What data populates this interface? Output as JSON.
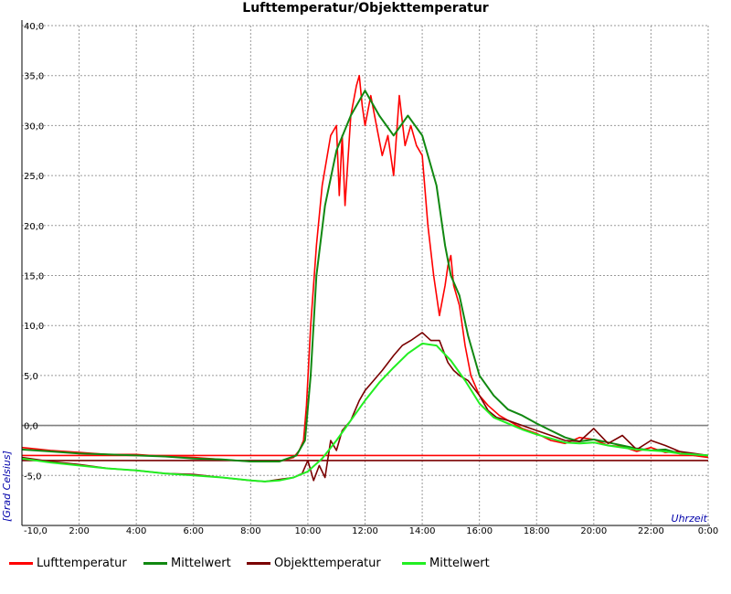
{
  "chart_data": {
    "type": "line",
    "title": "Lufttemperatur/Objekttemperatur",
    "xlabel": "Uhrzeit",
    "ylabel": "[Grad Celsius]",
    "xlim": [
      0,
      24
    ],
    "ylim": [
      -10,
      40
    ],
    "x_ticks": [
      {
        "x": 0,
        "label": "-10,0"
      },
      {
        "x": 2,
        "label": "2:00"
      },
      {
        "x": 4,
        "label": "4:00"
      },
      {
        "x": 6,
        "label": "6:00"
      },
      {
        "x": 8,
        "label": "8:00"
      },
      {
        "x": 10,
        "label": "10:00"
      },
      {
        "x": 12,
        "label": "12:00"
      },
      {
        "x": 14,
        "label": "14:00"
      },
      {
        "x": 16,
        "label": "16:00"
      },
      {
        "x": 18,
        "label": "18:00"
      },
      {
        "x": 20,
        "label": "20:00"
      },
      {
        "x": 22,
        "label": "22:00"
      },
      {
        "x": 24,
        "label": "0:00"
      }
    ],
    "y_ticks": [
      {
        "y": 40,
        "label": "40,0"
      },
      {
        "y": 35,
        "label": "35,0"
      },
      {
        "y": 30,
        "label": "30,0"
      },
      {
        "y": 25,
        "label": "25,0"
      },
      {
        "y": 20,
        "label": "20,0"
      },
      {
        "y": 15,
        "label": "15,0"
      },
      {
        "y": 10,
        "label": "10,0"
      },
      {
        "y": 5,
        "label": "5,0"
      },
      {
        "y": 0,
        "label": "0,0"
      },
      {
        "y": -5,
        "label": "-5,0"
      }
    ],
    "grid": true,
    "legend_position": "bottom",
    "reference_lines": [
      {
        "y": 0,
        "color": "#808080"
      },
      {
        "y": -3.0,
        "color": "#ff0000"
      },
      {
        "y": -3.5,
        "color": "#7a0000"
      }
    ],
    "series": [
      {
        "name": "Lufttemperatur",
        "color": "#ff0000",
        "width": 1.6,
        "x": [
          0,
          1,
          2,
          3,
          4,
          5,
          6,
          7,
          8,
          9,
          9.5,
          9.7,
          9.85,
          9.95,
          10.1,
          10.3,
          10.5,
          10.8,
          11,
          11.1,
          11.2,
          11.3,
          11.5,
          11.7,
          11.8,
          11.9,
          12,
          12.2,
          12.4,
          12.6,
          12.8,
          13,
          13.2,
          13.4,
          13.6,
          13.8,
          14,
          14.2,
          14.4,
          14.6,
          14.8,
          14.9,
          15,
          15.1,
          15.3,
          15.5,
          15.7,
          16,
          16.3,
          16.7,
          17,
          17.5,
          18,
          18.5,
          19,
          19.5,
          20,
          20.5,
          21,
          21.5,
          22,
          22.5,
          23,
          23.5,
          24
        ],
        "y": [
          -2.2,
          -2.5,
          -2.7,
          -2.9,
          -2.9,
          -3.1,
          -3.2,
          -3.4,
          -3.6,
          -3.6,
          -3.2,
          -2.5,
          -1.5,
          2,
          10,
          18,
          24,
          29,
          30,
          23,
          29,
          22,
          31,
          34,
          35,
          32,
          30,
          33,
          30,
          27,
          29,
          25,
          33,
          28,
          30,
          28,
          27,
          20,
          15,
          11,
          14,
          16,
          17,
          14,
          12,
          8,
          5,
          3,
          2,
          1,
          0.5,
          -0.3,
          -0.8,
          -1.5,
          -1.8,
          -1.2,
          -1.4,
          -2.0,
          -2.1,
          -2.6,
          -2.2,
          -2.7,
          -2.6,
          -3.0,
          -3.2
        ]
      },
      {
        "name": "Mittelwert",
        "color": "#118811",
        "width": 2.0,
        "x": [
          0,
          1,
          2,
          3,
          4,
          5,
          6,
          7,
          8,
          9,
          9.6,
          9.9,
          10.1,
          10.3,
          10.6,
          11,
          11.5,
          12,
          12.5,
          13,
          13.5,
          14,
          14.5,
          14.8,
          15,
          15.3,
          15.6,
          16,
          16.5,
          17,
          17.5,
          18,
          18.5,
          19,
          19.5,
          20,
          20.5,
          21,
          21.5,
          22,
          22.5,
          23,
          23.5,
          24
        ],
        "y": [
          -2.4,
          -2.6,
          -2.8,
          -2.9,
          -3.0,
          -3.1,
          -3.3,
          -3.4,
          -3.6,
          -3.6,
          -3.0,
          -1.5,
          5,
          15,
          22,
          27.5,
          31,
          33.5,
          31,
          29,
          31,
          29,
          24,
          18,
          15,
          13,
          9,
          5,
          3,
          1.6,
          1.0,
          0.2,
          -0.5,
          -1.2,
          -1.6,
          -1.4,
          -1.7,
          -2.0,
          -2.3,
          -2.5,
          -2.4,
          -2.8,
          -2.9,
          -3.0
        ]
      },
      {
        "name": "Objekttemperatur",
        "color": "#7a0000",
        "width": 1.6,
        "x": [
          0,
          1,
          2,
          3,
          4,
          5,
          6,
          7,
          8,
          8.5,
          9,
          9.5,
          9.8,
          10,
          10.2,
          10.4,
          10.6,
          10.8,
          11,
          11.2,
          11.5,
          11.8,
          12,
          12.3,
          12.6,
          13,
          13.3,
          13.6,
          14,
          14.3,
          14.6,
          14.9,
          15.1,
          15.3,
          15.6,
          16,
          16.3,
          16.6,
          17,
          17.5,
          18,
          18.5,
          19,
          19.5,
          20,
          20.5,
          21,
          21.5,
          22,
          22.5,
          23,
          23.5,
          24
        ],
        "y": [
          -3.2,
          -3.6,
          -3.9,
          -4.3,
          -4.5,
          -4.8,
          -4.9,
          -5.2,
          -5.5,
          -5.6,
          -5.4,
          -5.2,
          -4.8,
          -3.5,
          -5.5,
          -4.0,
          -5.2,
          -1.5,
          -2.5,
          -0.5,
          0.5,
          2.5,
          3.5,
          4.5,
          5.5,
          7,
          8,
          8.5,
          9.3,
          8.5,
          8.5,
          6.3,
          5.5,
          5,
          4.5,
          3.0,
          1.5,
          0.8,
          0.5,
          0.0,
          -0.5,
          -1.0,
          -1.5,
          -1.6,
          -0.3,
          -1.8,
          -1.0,
          -2.4,
          -1.5,
          -2.0,
          -2.6,
          -2.8,
          -3.0
        ]
      },
      {
        "name": "Mittelwert",
        "color": "#22ee22",
        "width": 2.0,
        "x": [
          0,
          1,
          2,
          3,
          4,
          5,
          6,
          7,
          8,
          8.5,
          9,
          9.5,
          10,
          10.5,
          11,
          11.5,
          12,
          12.5,
          13,
          13.5,
          14,
          14.5,
          15,
          15.5,
          16,
          16.5,
          17,
          17.5,
          18,
          18.5,
          19,
          19.5,
          20,
          20.5,
          21,
          21.5,
          22,
          22.5,
          23,
          23.5,
          24
        ],
        "y": [
          -3.3,
          -3.7,
          -4.0,
          -4.3,
          -4.5,
          -4.8,
          -5.0,
          -5.2,
          -5.5,
          -5.6,
          -5.5,
          -5.2,
          -4.6,
          -3.3,
          -1.5,
          0.5,
          2.5,
          4.3,
          5.8,
          7.2,
          8.2,
          8.0,
          6.5,
          4.5,
          2.2,
          0.8,
          0.2,
          -0.4,
          -0.9,
          -1.3,
          -1.7,
          -1.8,
          -1.7,
          -2.0,
          -2.2,
          -2.4,
          -2.5,
          -2.6,
          -2.8,
          -2.9,
          -3.0
        ]
      }
    ]
  }
}
